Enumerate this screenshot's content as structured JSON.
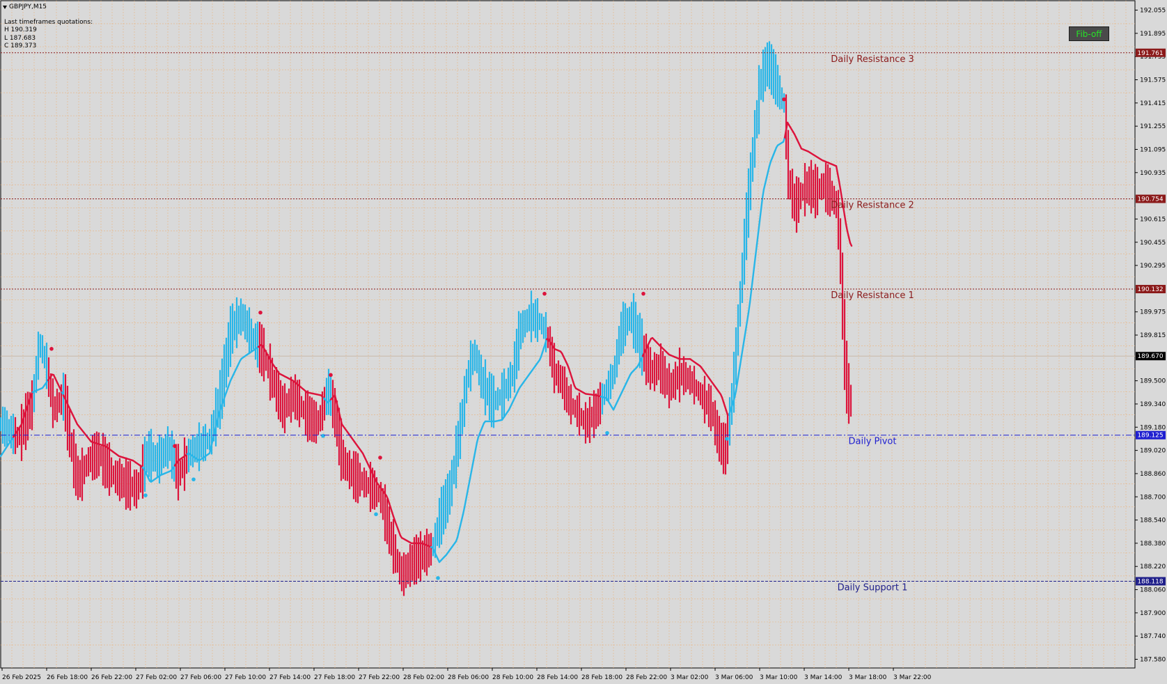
{
  "header": {
    "symbol": "GBPJPY,M15",
    "quotes_title": "Last timeframes quotations:",
    "high": "H 190.319",
    "low": "L 187.683",
    "close": "C 189.373"
  },
  "fib_button": {
    "label": "Fib-off",
    "text_color": "#27e327",
    "bg_color": "#4a4a4a"
  },
  "chart_data": {
    "type": "bar",
    "yaxis": {
      "ylim": [
        187.52,
        192.12
      ],
      "ticks": [
        "192.055",
        "191.895",
        "191.735",
        "191.575",
        "191.415",
        "191.255",
        "191.095",
        "190.935",
        "190.615",
        "190.455",
        "190.295",
        "189.975",
        "189.815",
        "189.500",
        "189.340",
        "189.180",
        "189.020",
        "188.860",
        "188.700",
        "188.540",
        "188.380",
        "188.220",
        "188.060",
        "187.900",
        "187.740",
        "187.580"
      ]
    },
    "xaxis": {
      "labels": [
        "26 Feb 2025",
        "26 Feb 18:00",
        "26 Feb 22:00",
        "27 Feb 02:00",
        "27 Feb 06:00",
        "27 Feb 10:00",
        "27 Feb 14:00",
        "27 Feb 18:00",
        "27 Feb 22:00",
        "28 Feb 02:00",
        "28 Feb 06:00",
        "28 Feb 10:00",
        "28 Feb 14:00",
        "28 Feb 18:00",
        "28 Feb 22:00",
        "3 Mar 02:00",
        "3 Mar 06:00",
        "3 Mar 10:00",
        "3 Mar 14:00",
        "3 Mar 18:00",
        "3 Mar 22:00"
      ]
    },
    "levels": [
      {
        "name": "Daily Resistance 3",
        "value": 191.761,
        "value_label": "191.761",
        "color": "#8b1a1a",
        "style": "dotted"
      },
      {
        "name": "Daily Resistance 2",
        "value": 190.754,
        "value_label": "190.754",
        "color": "#8b1a1a",
        "style": "dotted"
      },
      {
        "name": "Daily Resistance 1",
        "value": 190.132,
        "value_label": "190.132",
        "color": "#8b1a1a",
        "style": "dotted"
      },
      {
        "name": "Daily Pivot",
        "value": 189.125,
        "value_label": "189.125",
        "color": "#1f1fd0",
        "style": "dashdot"
      },
      {
        "name": "Daily Support 1",
        "value": 188.118,
        "value_label": "188.118",
        "color": "#1f1f8a",
        "style": "dashed"
      }
    ],
    "current_price": {
      "value": 189.67,
      "label": "189.670"
    },
    "up_color": "#29b6e8",
    "down_color": "#dc143c",
    "line_anchors": [
      [
        0,
        188.98
      ],
      [
        30,
        189.2
      ],
      [
        45,
        189.42
      ],
      [
        60,
        189.45
      ],
      [
        75,
        189.55
      ],
      [
        90,
        189.4
      ],
      [
        110,
        189.2
      ],
      [
        130,
        189.08
      ],
      [
        150,
        189.05
      ],
      [
        170,
        188.98
      ],
      [
        190,
        188.95
      ],
      [
        205,
        188.9
      ],
      [
        215,
        188.8
      ],
      [
        230,
        188.85
      ],
      [
        245,
        188.88
      ],
      [
        255,
        188.95
      ],
      [
        270,
        189.0
      ],
      [
        285,
        188.95
      ],
      [
        300,
        189.0
      ],
      [
        315,
        189.3
      ],
      [
        330,
        189.5
      ],
      [
        345,
        189.65
      ],
      [
        360,
        189.7
      ],
      [
        375,
        189.75
      ],
      [
        390,
        189.62
      ],
      [
        400,
        189.55
      ],
      [
        420,
        189.5
      ],
      [
        440,
        189.42
      ],
      [
        460,
        189.4
      ],
      [
        470,
        189.35
      ],
      [
        480,
        189.4
      ],
      [
        490,
        189.2
      ],
      [
        505,
        189.1
      ],
      [
        520,
        189.0
      ],
      [
        530,
        188.9
      ],
      [
        540,
        188.8
      ],
      [
        555,
        188.7
      ],
      [
        565,
        188.55
      ],
      [
        575,
        188.42
      ],
      [
        590,
        188.38
      ],
      [
        605,
        188.38
      ],
      [
        620,
        188.35
      ],
      [
        630,
        188.25
      ],
      [
        640,
        188.3
      ],
      [
        655,
        188.4
      ],
      [
        665,
        188.6
      ],
      [
        675,
        188.85
      ],
      [
        685,
        189.1
      ],
      [
        695,
        189.22
      ],
      [
        710,
        189.22
      ],
      [
        720,
        189.23
      ],
      [
        730,
        189.3
      ],
      [
        745,
        189.45
      ],
      [
        760,
        189.55
      ],
      [
        775,
        189.65
      ],
      [
        785,
        189.8
      ],
      [
        795,
        189.72
      ],
      [
        805,
        189.7
      ],
      [
        815,
        189.6
      ],
      [
        825,
        189.45
      ],
      [
        840,
        189.41
      ],
      [
        855,
        189.4
      ],
      [
        870,
        189.38
      ],
      [
        880,
        189.3
      ],
      [
        890,
        189.4
      ],
      [
        905,
        189.55
      ],
      [
        915,
        189.6
      ],
      [
        925,
        189.7
      ],
      [
        935,
        189.8
      ],
      [
        945,
        189.75
      ],
      [
        960,
        189.68
      ],
      [
        975,
        189.65
      ],
      [
        990,
        189.65
      ],
      [
        1005,
        189.6
      ],
      [
        1020,
        189.5
      ],
      [
        1035,
        189.4
      ],
      [
        1045,
        189.25
      ],
      [
        1055,
        189.4
      ],
      [
        1065,
        189.7
      ],
      [
        1075,
        190.0
      ],
      [
        1085,
        190.4
      ],
      [
        1095,
        190.8
      ],
      [
        1105,
        191.0
      ],
      [
        1115,
        191.12
      ],
      [
        1125,
        191.15
      ],
      [
        1130,
        191.28
      ],
      [
        1140,
        191.2
      ],
      [
        1150,
        191.1
      ],
      [
        1160,
        191.08
      ],
      [
        1170,
        191.05
      ],
      [
        1180,
        191.02
      ],
      [
        1190,
        191.0
      ],
      [
        1200,
        190.98
      ],
      [
        1205,
        190.85
      ],
      [
        1210,
        190.7
      ],
      [
        1215,
        190.55
      ],
      [
        1220,
        190.45
      ],
      [
        1223,
        190.42
      ]
    ],
    "candle_anchors": [
      [
        0,
        189.2
      ],
      [
        25,
        189.1
      ],
      [
        45,
        189.35
      ],
      [
        55,
        189.78
      ],
      [
        65,
        189.6
      ],
      [
        75,
        189.3
      ],
      [
        90,
        189.4
      ],
      [
        100,
        189.05
      ],
      [
        110,
        188.8
      ],
      [
        125,
        188.95
      ],
      [
        140,
        189.0
      ],
      [
        160,
        188.85
      ],
      [
        175,
        188.8
      ],
      [
        195,
        188.75
      ],
      [
        210,
        189.0
      ],
      [
        225,
        188.95
      ],
      [
        240,
        189.05
      ],
      [
        255,
        188.85
      ],
      [
        270,
        189.0
      ],
      [
        285,
        189.05
      ],
      [
        300,
        189.1
      ],
      [
        315,
        189.4
      ],
      [
        330,
        189.85
      ],
      [
        345,
        189.95
      ],
      [
        360,
        189.8
      ],
      [
        375,
        189.7
      ],
      [
        390,
        189.5
      ],
      [
        405,
        189.3
      ],
      [
        420,
        189.4
      ],
      [
        440,
        189.25
      ],
      [
        455,
        189.2
      ],
      [
        470,
        189.45
      ],
      [
        480,
        189.25
      ],
      [
        490,
        188.95
      ],
      [
        505,
        188.85
      ],
      [
        520,
        188.8
      ],
      [
        535,
        188.75
      ],
      [
        545,
        188.7
      ],
      [
        560,
        188.4
      ],
      [
        575,
        188.15
      ],
      [
        590,
        188.25
      ],
      [
        605,
        188.3
      ],
      [
        620,
        188.35
      ],
      [
        630,
        188.55
      ],
      [
        645,
        188.75
      ],
      [
        660,
        189.2
      ],
      [
        670,
        189.55
      ],
      [
        680,
        189.7
      ],
      [
        690,
        189.5
      ],
      [
        705,
        189.35
      ],
      [
        720,
        189.4
      ],
      [
        735,
        189.55
      ],
      [
        745,
        189.85
      ],
      [
        760,
        189.95
      ],
      [
        775,
        189.9
      ],
      [
        785,
        189.8
      ],
      [
        795,
        189.55
      ],
      [
        805,
        189.5
      ],
      [
        815,
        189.35
      ],
      [
        825,
        189.3
      ],
      [
        840,
        189.2
      ],
      [
        855,
        189.3
      ],
      [
        870,
        189.45
      ],
      [
        880,
        189.55
      ],
      [
        890,
        189.85
      ],
      [
        905,
        189.95
      ],
      [
        915,
        189.8
      ],
      [
        925,
        189.65
      ],
      [
        935,
        189.55
      ],
      [
        945,
        189.6
      ],
      [
        960,
        189.45
      ],
      [
        975,
        189.55
      ],
      [
        990,
        189.5
      ],
      [
        1005,
        189.4
      ],
      [
        1020,
        189.3
      ],
      [
        1030,
        189.1
      ],
      [
        1040,
        189.0
      ],
      [
        1050,
        189.4
      ],
      [
        1060,
        190.0
      ],
      [
        1070,
        190.6
      ],
      [
        1080,
        191.1
      ],
      [
        1090,
        191.55
      ],
      [
        1100,
        191.7
      ],
      [
        1110,
        191.6
      ],
      [
        1120,
        191.45
      ],
      [
        1125,
        191.4
      ],
      [
        1130,
        190.9
      ],
      [
        1140,
        190.7
      ],
      [
        1150,
        190.8
      ],
      [
        1160,
        190.85
      ],
      [
        1170,
        190.8
      ],
      [
        1180,
        190.85
      ],
      [
        1190,
        190.8
      ],
      [
        1200,
        190.7
      ],
      [
        1205,
        190.4
      ],
      [
        1208,
        190.0
      ],
      [
        1212,
        189.6
      ],
      [
        1216,
        189.4
      ],
      [
        1220,
        189.35
      ]
    ],
    "dots": [
      {
        "t": 73,
        "v": 189.72,
        "dir": "down"
      },
      {
        "t": 208,
        "v": 188.71,
        "dir": "up"
      },
      {
        "t": 250,
        "v": 189.05,
        "dir": "down"
      },
      {
        "t": 277,
        "v": 188.82,
        "dir": "up"
      },
      {
        "t": 373,
        "v": 189.97,
        "dir": "down"
      },
      {
        "t": 463,
        "v": 189.12,
        "dir": "up"
      },
      {
        "t": 474,
        "v": 189.54,
        "dir": "down"
      },
      {
        "t": 539,
        "v": 188.58,
        "dir": "up"
      },
      {
        "t": 545,
        "v": 188.97,
        "dir": "down"
      },
      {
        "t": 628,
        "v": 188.14,
        "dir": "up"
      },
      {
        "t": 781,
        "v": 190.1,
        "dir": "down"
      },
      {
        "t": 871,
        "v": 189.14,
        "dir": "up"
      },
      {
        "t": 923,
        "v": 190.1,
        "dir": "down"
      },
      {
        "t": 1043,
        "v": 189.1,
        "dir": "up"
      },
      {
        "t": 1125,
        "v": 191.44,
        "dir": "down"
      }
    ]
  }
}
